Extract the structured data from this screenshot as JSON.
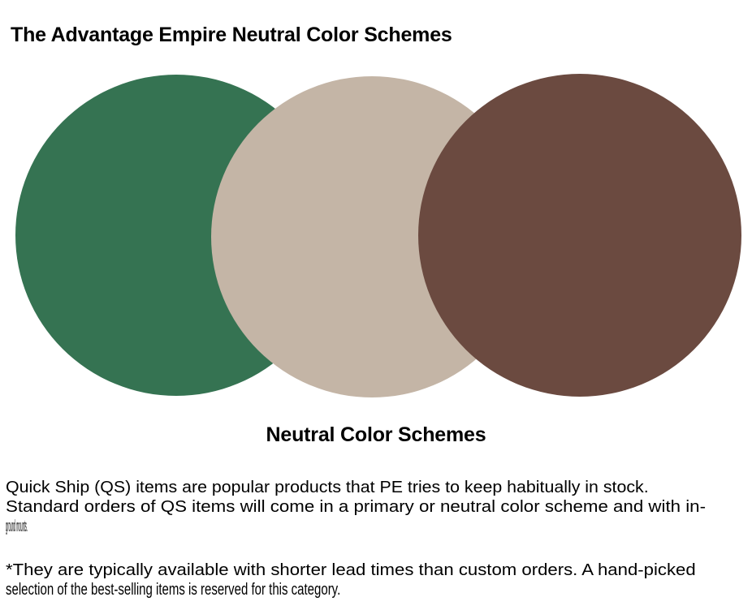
{
  "header": {
    "title": "The Advantage Empire Neutral Color Schemes"
  },
  "swatches": [
    {
      "name": "green",
      "color": "#357352"
    },
    {
      "name": "beige",
      "color": "#c4b5a6"
    },
    {
      "name": "brown",
      "color": "#6b4a40"
    }
  ],
  "section": {
    "subtitle": "Neutral Color Schemes"
  },
  "body": {
    "paragraph1": [
      "Quick Ship (QS) items are popular products that PE tries to keep habitually in stock.",
      "Standard orders of QS items will come in a primary or neutral color scheme and with in-",
      "ground mounts."
    ],
    "paragraph2": [
      "*They are typically available with shorter lead times than custom orders. A hand-picked",
      "selection of the best-selling items is reserved for this category."
    ]
  }
}
